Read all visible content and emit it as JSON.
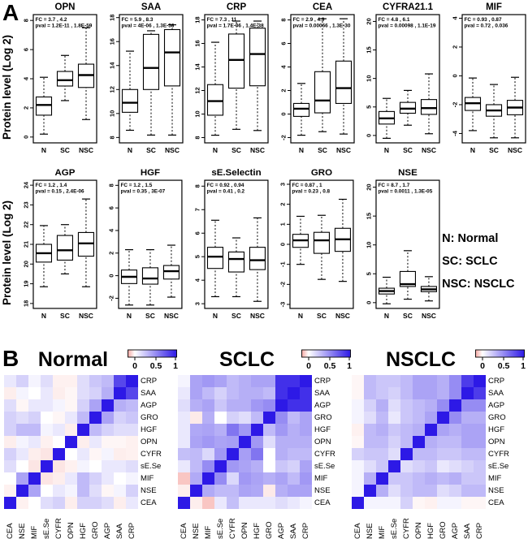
{
  "panel_a": {
    "label": "A",
    "y_axis_label": "Protein level (Log 2)",
    "group_codes": [
      "N",
      "SC",
      "NSC"
    ],
    "legend": [
      "N: Normal",
      "SC: SCLC",
      "NSC: NSCLC"
    ]
  },
  "panel_b": {
    "label": "B",
    "colorbar_ticks": [
      "0",
      "0.5",
      "1"
    ],
    "colors": {
      "positive_max": "#2d19e6",
      "negative": "#f5a8a2",
      "zero": "#ffffff"
    }
  },
  "chart_data": [
    {
      "type": "boxplot",
      "title": "OPN",
      "row": 1,
      "fc_label": "FC =  3.7 , 4.2",
      "pval_label": "pval = 1.2E-11 , 1.8E-59",
      "ylim": [
        -0.4,
        8.4
      ],
      "yticks": [
        0,
        2,
        4,
        6,
        8
      ],
      "categories": [
        "N",
        "SC",
        "NSC"
      ],
      "boxes": [
        {
          "group": "N",
          "low": 0.2,
          "q1": 1.5,
          "median": 2.2,
          "q3": 2.75,
          "high": 4.1
        },
        {
          "group": "SC",
          "low": 2.5,
          "q1": 3.5,
          "median": 3.9,
          "q3": 4.5,
          "high": 5.6
        },
        {
          "group": "NSC",
          "low": 1.2,
          "q1": 3.4,
          "median": 4.25,
          "q3": 5.0,
          "high": 7.5
        }
      ]
    },
    {
      "type": "boxplot",
      "title": "SAA",
      "row": 1,
      "fc_label": "FC =  5.9 , 8.3",
      "pval_label": "pval = 4E-06 , 1.3E-36",
      "ylim": [
        7.55,
        18.25
      ],
      "yticks": [
        8,
        10,
        12,
        14,
        16,
        18
      ],
      "categories": [
        "N",
        "SC",
        "NSC"
      ],
      "boxes": [
        {
          "group": "N",
          "low": 8.6,
          "q1": 10.1,
          "median": 10.9,
          "q3": 12.0,
          "high": 15.2
        },
        {
          "group": "SC",
          "low": 8.2,
          "q1": 12.0,
          "median": 13.8,
          "q3": 16.6,
          "high": 16.9
        },
        {
          "group": "NSC",
          "low": 8.2,
          "q1": 12.3,
          "median": 15.1,
          "q3": 17.0,
          "high": 17.4
        }
      ]
    },
    {
      "type": "boxplot",
      "title": "CRP",
      "row": 1,
      "fc_label": "FC =  7.3 , 11",
      "pval_label": "pval = 1.7E-06 , 1.4E-38",
      "ylim": [
        7.55,
        18.45
      ],
      "yticks": [
        8,
        10,
        12,
        14,
        16,
        18
      ],
      "categories": [
        "N",
        "SC",
        "NSC"
      ],
      "boxes": [
        {
          "group": "N",
          "low": 8.2,
          "q1": 9.9,
          "median": 11.1,
          "q3": 12.5,
          "high": 16.1
        },
        {
          "group": "SC",
          "low": 8.7,
          "q1": 12.2,
          "median": 14.6,
          "q3": 16.8,
          "high": 17.9
        },
        {
          "group": "NSC",
          "low": 8.6,
          "q1": 12.4,
          "median": 15.1,
          "q3": 17.3,
          "high": 17.9
        }
      ]
    },
    {
      "type": "boxplot",
      "title": "CEA",
      "row": 1,
      "fc_label": "FC =  2.9 , 4.9",
      "pval_label": "pval = 0.00066 , 1.3E-30",
      "ylim": [
        -2.45,
        8.45
      ],
      "yticks": [
        -2,
        0,
        2,
        4,
        6,
        8
      ],
      "categories": [
        "N",
        "SC",
        "NSC"
      ],
      "boxes": [
        {
          "group": "N",
          "low": -1.8,
          "q1": -0.2,
          "median": 0.45,
          "q3": 0.9,
          "high": 2.6
        },
        {
          "group": "SC",
          "low": -1.5,
          "q1": 0.1,
          "median": 1.15,
          "q3": 3.6,
          "high": 8.1
        },
        {
          "group": "NSC",
          "low": -1.7,
          "q1": 0.9,
          "median": 2.2,
          "q3": 4.5,
          "high": 8.1
        }
      ]
    },
    {
      "type": "boxplot",
      "title": "CYFRA21.1",
      "row": 1,
      "fc_label": "FC =  4.8 , 6.1",
      "pval_label": "pval = 0.00098 , 1.1E-19",
      "ylim": [
        -1.3,
        21.2
      ],
      "yticks": [
        0,
        5,
        10,
        15,
        20
      ],
      "categories": [
        "N",
        "SC",
        "NSC"
      ],
      "boxes": [
        {
          "group": "N",
          "low": -0.5,
          "q1": 2.0,
          "median": 3.0,
          "q3": 4.2,
          "high": 6.5
        },
        {
          "group": "SC",
          "low": 1.8,
          "q1": 3.9,
          "median": 4.7,
          "q3": 5.8,
          "high": 7.9
        },
        {
          "group": "NSC",
          "low": 0.3,
          "q1": 3.7,
          "median": 4.8,
          "q3": 6.3,
          "high": 10.8
        }
      ]
    },
    {
      "type": "boxplot",
      "title": "MIF",
      "row": 1,
      "fc_label": "FC =  0.93 , 0.87",
      "pval_label": "pval = 0.72 , 0.036",
      "ylim": [
        -4.65,
        4.25
      ],
      "yticks": [
        -4,
        -2,
        0,
        2,
        4
      ],
      "categories": [
        "N",
        "SC",
        "NSC"
      ],
      "boxes": [
        {
          "group": "N",
          "low": -3.8,
          "q1": -2.4,
          "median": -1.9,
          "q3": -1.5,
          "high": -0.15
        },
        {
          "group": "SC",
          "low": -4.3,
          "q1": -2.8,
          "median": -2.4,
          "q3": -2.0,
          "high": -0.6
        },
        {
          "group": "NSC",
          "low": -4.3,
          "q1": -2.7,
          "median": -2.2,
          "q3": -1.7,
          "high": -0.1
        }
      ]
    },
    {
      "type": "boxplot",
      "title": "AGP",
      "row": 2,
      "fc_label": "FC =  1.2 , 1.4",
      "pval_label": "pval = 0.15 , 2.4E-06",
      "ylim": [
        17.75,
        24.25
      ],
      "yticks": [
        18,
        19,
        20,
        21,
        22,
        23,
        24
      ],
      "categories": [
        "N",
        "SC",
        "NSC"
      ],
      "boxes": [
        {
          "group": "N",
          "low": 18.85,
          "q1": 20.1,
          "median": 20.55,
          "q3": 21.0,
          "high": 21.95
        },
        {
          "group": "SC",
          "low": 19.5,
          "q1": 20.2,
          "median": 20.7,
          "q3": 21.45,
          "high": 22.0
        },
        {
          "group": "NSC",
          "low": 18.85,
          "q1": 20.4,
          "median": 21.05,
          "q3": 21.6,
          "high": 23.3
        }
      ]
    },
    {
      "type": "boxplot",
      "title": "HGF",
      "row": 2,
      "fc_label": "FC =  1.2 , 1.5",
      "pval_label": "pval = 0.35 , 3E-07",
      "ylim": [
        -2.9,
        8.45
      ],
      "yticks": [
        -2,
        0,
        2,
        4,
        6,
        8
      ],
      "categories": [
        "N",
        "SC",
        "NSC"
      ],
      "boxes": [
        {
          "group": "N",
          "low": -2.6,
          "q1": -0.7,
          "median": -0.1,
          "q3": 0.5,
          "high": 2.3
        },
        {
          "group": "SC",
          "low": -2.6,
          "q1": -0.75,
          "median": -0.25,
          "q3": 0.7,
          "high": 2.3
        },
        {
          "group": "NSC",
          "low": -1.9,
          "q1": -0.3,
          "median": 0.4,
          "q3": 0.9,
          "high": 2.7
        }
      ]
    },
    {
      "type": "boxplot",
      "title": "sE.Selectin",
      "row": 2,
      "fc_label": "FC =  0.92 , 0.94",
      "pval_label": "pval = 0.41 , 0.2",
      "ylim": [
        2.8,
        8.25
      ],
      "yticks": [
        3,
        4,
        5,
        6,
        7,
        8
      ],
      "categories": [
        "N",
        "SC",
        "NSC"
      ],
      "boxes": [
        {
          "group": "N",
          "low": 3.3,
          "q1": 4.5,
          "median": 5.0,
          "q3": 5.4,
          "high": 6.55
        },
        {
          "group": "SC",
          "low": 3.3,
          "q1": 4.35,
          "median": 4.9,
          "q3": 5.2,
          "high": 5.8
        },
        {
          "group": "NSC",
          "low": 3.1,
          "q1": 4.45,
          "median": 4.85,
          "q3": 5.4,
          "high": 6.65
        }
      ]
    },
    {
      "type": "boxplot",
      "title": "GRO",
      "row": 2,
      "fc_label": "FC =  0.87 , 1",
      "pval_label": "pval = 0.23 , 0.8",
      "ylim": [
        -3.2,
        3.2
      ],
      "yticks": [
        -3,
        -2,
        -1,
        0,
        1,
        2,
        3
      ],
      "categories": [
        "N",
        "SC",
        "NSC"
      ],
      "boxes": [
        {
          "group": "N",
          "low": -1.0,
          "q1": -0.15,
          "median": 0.2,
          "q3": 0.5,
          "high": 1.4
        },
        {
          "group": "SC",
          "low": -1.75,
          "q1": -0.45,
          "median": 0.2,
          "q3": 0.6,
          "high": 1.45
        },
        {
          "group": "NSC",
          "low": -1.85,
          "q1": -0.35,
          "median": 0.25,
          "q3": 0.8,
          "high": 2.25
        }
      ]
    },
    {
      "type": "boxplot",
      "title": "NSE",
      "row": 2,
      "fc_label": "FC =  8.7 , 1.7",
      "pval_label": "pval = 0.0011 , 1.3E-05",
      "ylim": [
        -1.0,
        21.2
      ],
      "yticks": [
        0,
        5,
        10,
        15,
        20
      ],
      "categories": [
        "N",
        "SC",
        "NSC"
      ],
      "boxes": [
        {
          "group": "N",
          "low": -0.2,
          "q1": 1.5,
          "median": 2.0,
          "q3": 2.5,
          "high": 4.4
        },
        {
          "group": "SC",
          "low": 0.6,
          "q1": 2.8,
          "median": 3.2,
          "q3": 5.4,
          "high": 9.0
        },
        {
          "group": "NSC",
          "low": 0.3,
          "q1": 1.9,
          "median": 2.3,
          "q3": 2.8,
          "high": 4.5
        }
      ]
    },
    {
      "type": "heatmap",
      "title": "Normal",
      "rows": [
        "CRP",
        "SAA",
        "AGP",
        "GRO",
        "HGF",
        "OPN",
        "CYFR",
        "sE.Se",
        "MIF",
        "NSE",
        "CEA"
      ],
      "columns": [
        "CEA",
        "NSE",
        "MIF",
        "sE.Se",
        "CYFR",
        "OPN",
        "HGF",
        "GRO",
        "AGP",
        "SAA",
        "CRP"
      ],
      "scale": {
        "min": -1,
        "max": 1,
        "ticks": [
          "0",
          "0.5",
          "1"
        ]
      },
      "values": [
        [
          0.1,
          0.2,
          0.05,
          0.15,
          -0.08,
          -0.08,
          0.15,
          0.25,
          0.3,
          0.8,
          1.0
        ],
        [
          -0.1,
          0.05,
          0.0,
          0.1,
          -0.1,
          -0.05,
          0.15,
          0.2,
          0.35,
          1.0,
          0.8
        ],
        [
          0.15,
          -0.05,
          0.1,
          0.1,
          0.05,
          -0.05,
          0.2,
          0.4,
          1.0,
          0.35,
          0.3
        ],
        [
          0.2,
          0.15,
          0.2,
          0.0,
          -0.05,
          0.1,
          0.3,
          1.0,
          0.4,
          0.2,
          0.25
        ],
        [
          0.2,
          0.3,
          0.3,
          0.05,
          0.1,
          -0.1,
          1.0,
          0.3,
          0.2,
          0.15,
          0.15
        ],
        [
          -0.1,
          0.05,
          0.1,
          -0.08,
          0.0,
          1.0,
          -0.1,
          0.1,
          -0.05,
          -0.05,
          -0.08
        ],
        [
          0.2,
          0.1,
          -0.1,
          -0.15,
          1.0,
          0.0,
          0.1,
          -0.05,
          0.05,
          -0.1,
          -0.08
        ],
        [
          0.15,
          0.0,
          -0.15,
          1.0,
          -0.15,
          -0.08,
          0.05,
          0.0,
          0.1,
          0.1,
          0.15
        ],
        [
          0.0,
          0.4,
          1.0,
          -0.15,
          -0.1,
          0.1,
          0.3,
          0.2,
          0.1,
          0.0,
          0.05
        ],
        [
          -0.08,
          1.0,
          0.4,
          0.0,
          0.1,
          0.05,
          0.3,
          0.15,
          -0.05,
          0.05,
          0.2
        ],
        [
          1.0,
          -0.08,
          0.0,
          0.15,
          0.2,
          -0.1,
          0.2,
          0.2,
          0.15,
          -0.1,
          0.1
        ]
      ]
    },
    {
      "type": "heatmap",
      "title": "SCLC",
      "rows": [
        "CRP",
        "SAA",
        "AGP",
        "GRO",
        "HGF",
        "OPN",
        "CYFR",
        "sE.Se",
        "MIF",
        "NSE",
        "CEA"
      ],
      "columns": [
        "CEA",
        "NSE",
        "MIF",
        "sE.Se",
        "CYFR",
        "OPN",
        "HGF",
        "GRO",
        "AGP",
        "SAA",
        "CRP"
      ],
      "scale": {
        "min": -1,
        "max": 1,
        "ticks": [
          "0",
          "0.5",
          "1"
        ]
      },
      "values": [
        [
          0.05,
          0.4,
          0.45,
          0.4,
          0.3,
          0.35,
          0.4,
          0.4,
          0.9,
          0.9,
          1.0
        ],
        [
          0.1,
          0.4,
          0.3,
          0.2,
          0.3,
          0.35,
          0.35,
          0.3,
          0.9,
          1.0,
          0.9
        ],
        [
          0.15,
          0.35,
          0.4,
          0.25,
          0.35,
          0.35,
          0.45,
          0.5,
          1.0,
          0.9,
          0.9
        ],
        [
          0.1,
          -0.12,
          0.35,
          0.0,
          0.2,
          0.15,
          0.3,
          1.0,
          0.5,
          0.3,
          0.4
        ],
        [
          0.1,
          0.38,
          0.4,
          0.35,
          0.6,
          0.45,
          1.0,
          0.3,
          0.45,
          0.35,
          0.4
        ],
        [
          0.1,
          0.4,
          0.45,
          0.4,
          0.42,
          1.0,
          0.45,
          0.15,
          0.35,
          0.35,
          0.35
        ],
        [
          0.28,
          0.3,
          0.17,
          0.45,
          1.0,
          0.42,
          0.6,
          0.0,
          0.35,
          0.3,
          0.3
        ],
        [
          0.1,
          0.3,
          0.5,
          1.0,
          0.45,
          0.4,
          0.35,
          0.0,
          0.25,
          0.2,
          0.4
        ],
        [
          -0.33,
          0.37,
          1.0,
          0.5,
          0.17,
          0.45,
          0.4,
          0.35,
          0.4,
          0.3,
          0.45
        ],
        [
          -0.1,
          1.0,
          0.37,
          0.3,
          0.3,
          0.4,
          0.38,
          -0.12,
          0.35,
          0.4,
          0.4
        ],
        [
          1.0,
          -0.1,
          -0.33,
          0.1,
          0.28,
          0.1,
          0.1,
          0.1,
          0.15,
          0.1,
          0.05
        ]
      ]
    },
    {
      "type": "heatmap",
      "title": "NSCLC",
      "rows": [
        "CRP",
        "SAA",
        "AGP",
        "GRO",
        "HGF",
        "OPN",
        "CYFR",
        "sE.Se",
        "MIF",
        "NSE",
        "CEA"
      ],
      "columns": [
        "CEA",
        "NSE",
        "MIF",
        "sE.Se",
        "CYFR",
        "OPN",
        "HGF",
        "GRO",
        "AGP",
        "SAA",
        "CRP"
      ],
      "scale": {
        "min": -1,
        "max": 1,
        "ticks": [
          "0",
          "0.5",
          "1"
        ]
      },
      "values": [
        [
          -0.05,
          0.3,
          0.25,
          0.25,
          0.3,
          0.4,
          0.4,
          0.35,
          0.5,
          0.85,
          1.0
        ],
        [
          -0.05,
          0.3,
          0.25,
          0.2,
          0.3,
          0.4,
          0.4,
          0.35,
          0.5,
          1.0,
          0.85
        ],
        [
          0.05,
          0.2,
          0.35,
          0.15,
          0.25,
          0.3,
          0.35,
          0.5,
          1.0,
          0.5,
          0.5
        ],
        [
          0.05,
          0.15,
          0.3,
          0.1,
          0.25,
          0.3,
          0.4,
          1.0,
          0.5,
          0.35,
          0.35
        ],
        [
          -0.08,
          0.3,
          0.35,
          0.25,
          0.3,
          0.35,
          1.0,
          0.4,
          0.35,
          0.4,
          0.4
        ],
        [
          -0.05,
          0.3,
          0.3,
          0.2,
          0.3,
          1.0,
          0.35,
          0.3,
          0.3,
          0.4,
          0.4
        ],
        [
          0.2,
          0.25,
          0.25,
          0.15,
          1.0,
          0.3,
          0.3,
          0.25,
          0.25,
          0.3,
          0.3
        ],
        [
          0.05,
          0.15,
          0.25,
          1.0,
          0.15,
          0.2,
          0.25,
          0.1,
          0.15,
          0.2,
          0.25
        ],
        [
          0.05,
          0.35,
          1.0,
          0.25,
          0.25,
          0.3,
          0.35,
          0.3,
          0.35,
          0.25,
          0.25
        ],
        [
          0.05,
          1.0,
          0.35,
          0.15,
          0.25,
          0.3,
          0.3,
          0.15,
          0.2,
          0.3,
          0.3
        ],
        [
          1.0,
          0.05,
          0.05,
          0.05,
          0.2,
          -0.05,
          -0.08,
          0.05,
          0.05,
          -0.05,
          -0.05
        ]
      ]
    }
  ]
}
